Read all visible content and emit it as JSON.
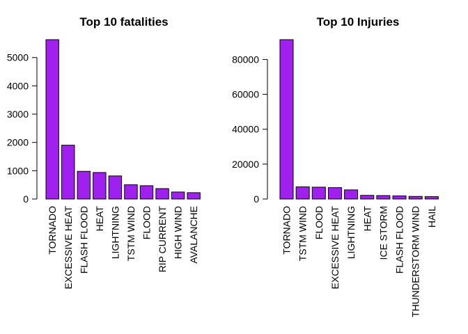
{
  "chart_data": [
    {
      "type": "bar",
      "title": "Top 10 fatalities",
      "xlabel": "",
      "ylabel": "",
      "categories": [
        "TORNADO",
        "EXCESSIVE HEAT",
        "FLASH FLOOD",
        "HEAT",
        "LIGHTNING",
        "TSTM WIND",
        "FLOOD",
        "RIP CURRENT",
        "HIGH WIND",
        "AVALANCHE"
      ],
      "values": [
        5633,
        1903,
        978,
        937,
        816,
        504,
        470,
        368,
        248,
        224
      ],
      "yticks": [
        0,
        1000,
        2000,
        3000,
        4000,
        5000
      ],
      "ylim": [
        0,
        5633
      ],
      "grid": false,
      "bar_color": "#A020F0",
      "label_orientation": "vertical"
    },
    {
      "type": "bar",
      "title": "Top 10 Injuries",
      "xlabel": "",
      "ylabel": "",
      "categories": [
        "TORNADO",
        "TSTM WIND",
        "FLOOD",
        "EXCESSIVE HEAT",
        "LIGHTNING",
        "HEAT",
        "ICE STORM",
        "FLASH FLOOD",
        "THUNDERSTORM WIND",
        "HAIL"
      ],
      "values": [
        91346,
        6957,
        6789,
        6525,
        5230,
        2100,
        1975,
        1777,
        1488,
        1361
      ],
      "yticks": [
        0,
        20000,
        40000,
        60000,
        80000
      ],
      "ylim": [
        0,
        91346
      ],
      "grid": false,
      "bar_color": "#A020F0",
      "label_orientation": "vertical"
    }
  ]
}
